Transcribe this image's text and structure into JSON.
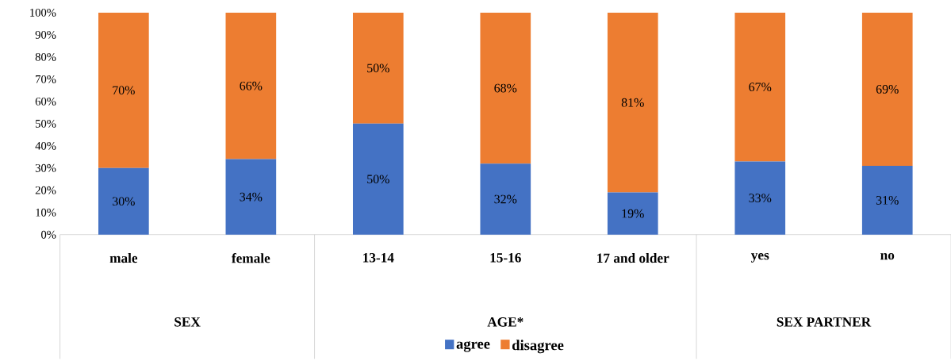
{
  "chart_data": {
    "type": "bar",
    "stacked": true,
    "categories": [
      "male",
      "female",
      "13-14",
      "15-16",
      "17 and older",
      "yes",
      "no"
    ],
    "series": [
      {
        "name": "agree",
        "color": "#4472c4",
        "values": [
          30,
          34,
          50,
          32,
          19,
          33,
          31
        ],
        "value_labels": [
          "30%",
          "34%",
          "50%",
          "32%",
          "19%",
          "33%",
          "31%"
        ]
      },
      {
        "name": "disagree",
        "color": "#ed7d31",
        "values": [
          70,
          66,
          50,
          68,
          81,
          67,
          69
        ],
        "value_labels": [
          "70%",
          "66%",
          "50%",
          "68%",
          "81%",
          "67%",
          "69%"
        ]
      }
    ],
    "ylim": [
      0,
      100
    ],
    "yticks": [
      {
        "value": 0,
        "label": "0%"
      },
      {
        "value": 10,
        "label": "10%"
      },
      {
        "value": 20,
        "label": "20%"
      },
      {
        "value": 30,
        "label": "30%"
      },
      {
        "value": 40,
        "label": "40%"
      },
      {
        "value": 50,
        "label": "50%"
      },
      {
        "value": 60,
        "label": "60%"
      },
      {
        "value": 70,
        "label": "70%"
      },
      {
        "value": 80,
        "label": "80%"
      },
      {
        "value": 90,
        "label": "90%"
      },
      {
        "value": 100,
        "label": "100%"
      }
    ],
    "annotations": [
      "SEX",
      "AGE*",
      "SEX PARTNER"
    ],
    "legend": "bottom"
  }
}
